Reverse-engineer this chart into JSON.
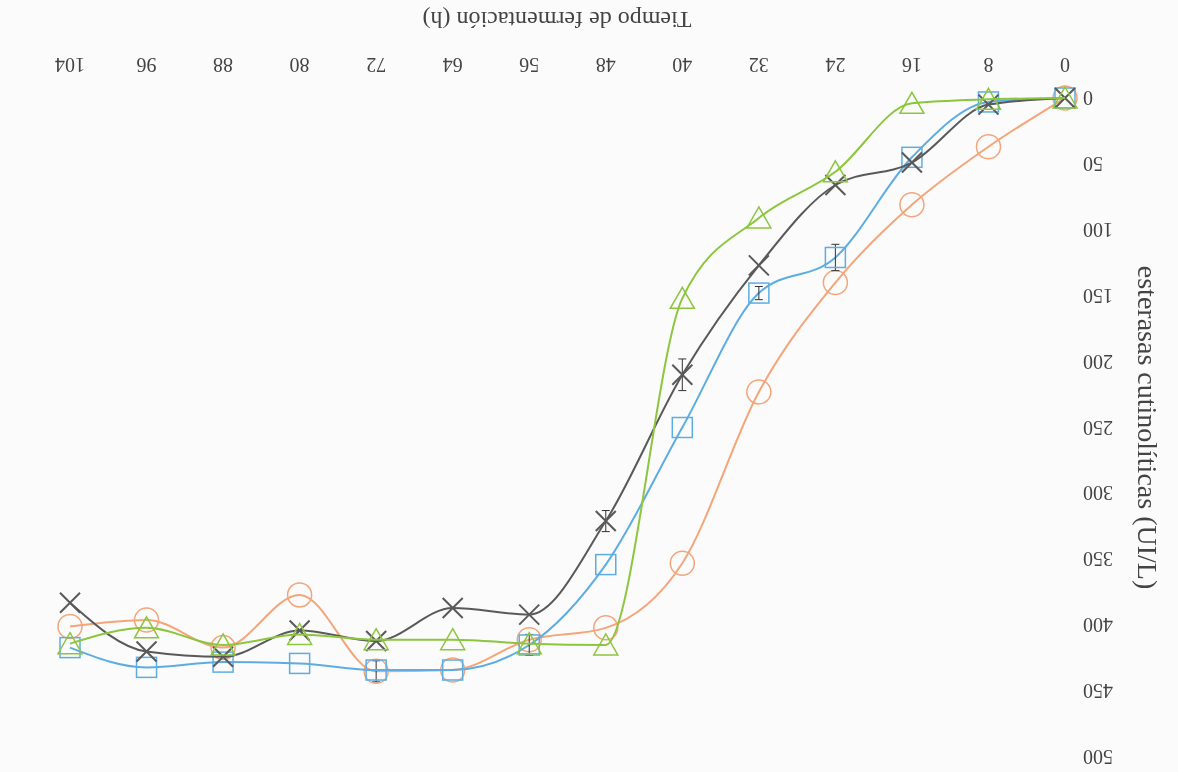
{
  "chart_data": {
    "type": "line",
    "xlabel": "Tiempo de fermentación (h)",
    "ylabel": "esterasas cutinolíticas (UI/L)",
    "x": [
      0,
      8,
      16,
      24,
      32,
      40,
      48,
      56,
      64,
      72,
      80,
      88,
      96,
      104
    ],
    "xlim": [
      104,
      0
    ],
    "xticks": [
      0,
      8,
      16,
      24,
      32,
      40,
      48,
      56,
      64,
      72,
      80,
      88,
      96,
      104
    ],
    "ylim": [
      500,
      0
    ],
    "yticks": [
      0,
      50,
      100,
      150,
      200,
      250,
      300,
      350,
      400,
      450,
      500
    ],
    "grid": false,
    "series": [
      {
        "color": "#f4a57a",
        "marker": "circle",
        "values": [
          0,
          37,
          81,
          140,
          223,
          353,
          402,
          411,
          434,
          435,
          377,
          417,
          396,
          401
        ],
        "errors": [
          null,
          null,
          null,
          null,
          null,
          null,
          null,
          null,
          null,
          8,
          null,
          null,
          null,
          null
        ]
      },
      {
        "color": "#5dade2",
        "marker": "square",
        "values": [
          0,
          3,
          45,
          121,
          148,
          250,
          354,
          415,
          434,
          434,
          429,
          428,
          432,
          417
        ],
        "errors": [
          null,
          null,
          null,
          10,
          5,
          null,
          null,
          8,
          null,
          null,
          null,
          null,
          null,
          null
        ]
      },
      {
        "color": "#595959",
        "marker": "cross",
        "values": [
          0,
          5,
          49,
          66,
          127,
          210,
          321,
          392,
          387,
          412,
          404,
          424,
          420,
          383
        ],
        "errors": [
          null,
          null,
          null,
          null,
          null,
          12,
          8,
          null,
          null,
          null,
          null,
          null,
          null,
          null
        ]
      },
      {
        "color": "#8cc63f",
        "marker": "triangle",
        "values": [
          0,
          1,
          4,
          56,
          91,
          152,
          415,
          414,
          411,
          411,
          407,
          415,
          402,
          414
        ]
      }
    ]
  }
}
